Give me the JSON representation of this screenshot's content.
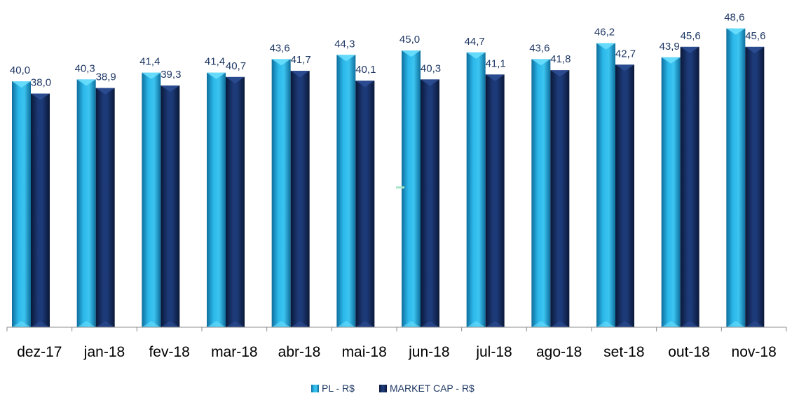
{
  "chart_data": {
    "type": "bar",
    "categories": [
      "dez-17",
      "jan-18",
      "fev-18",
      "mar-18",
      "abr-18",
      "mai-18",
      "jun-18",
      "jul-18",
      "ago-18",
      "set-18",
      "out-18",
      "nov-18"
    ],
    "series": [
      {
        "name": "PL - R$",
        "values": [
          40.0,
          40.3,
          41.4,
          41.4,
          43.6,
          44.3,
          45.0,
          44.7,
          43.6,
          46.2,
          43.9,
          48.6
        ],
        "labels": [
          "40,0",
          "40,3",
          "41,4",
          "41,4",
          "43,6",
          "44,3",
          "45,0",
          "44,7",
          "43,6",
          "46,2",
          "43,9",
          "48,6"
        ],
        "color": "#1FA8DD"
      },
      {
        "name": "MARKET CAP - R$",
        "values": [
          38.0,
          38.9,
          39.3,
          40.7,
          41.7,
          40.1,
          40.3,
          41.1,
          41.8,
          42.7,
          45.6,
          45.6
        ],
        "labels": [
          "38,0",
          "38,9",
          "39,3",
          "40,7",
          "41,7",
          "40,1",
          "40,3",
          "41,1",
          "41,8",
          "42,7",
          "45,6",
          "45,6"
        ],
        "color": "#132A5E"
      }
    ],
    "legend_position": "bottom-center",
    "grid": false,
    "xlabel": "",
    "ylabel": ""
  }
}
